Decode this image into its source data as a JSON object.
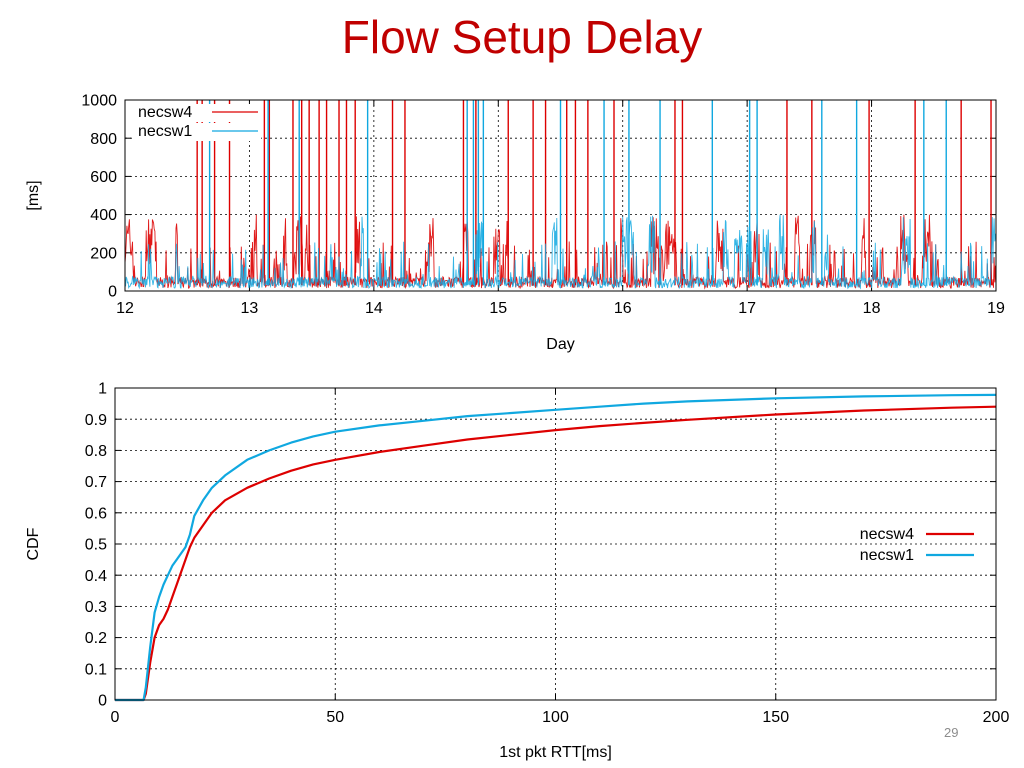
{
  "slide": {
    "title": "Flow Setup Delay",
    "page_number": "29"
  },
  "colors": {
    "necsw4": "#dd0000",
    "necsw1": "#10a8e0",
    "title": "#c00000"
  },
  "chart_data": [
    {
      "type": "line",
      "xlabel": "Day",
      "ylabel": "[ms]",
      "xlim": [
        12,
        19
      ],
      "ylim": [
        0,
        1000
      ],
      "xticks": [
        "12",
        "13",
        "14",
        "15",
        "16",
        "17",
        "18",
        "19"
      ],
      "yticks": [
        "0",
        "200",
        "400",
        "600",
        "800",
        "1000"
      ],
      "grid": true,
      "legend": "top-left",
      "series": [
        {
          "name": "necsw4",
          "baseline_ms": 50,
          "spikes": [
            {
              "x": 12.58,
              "y": 1000
            },
            {
              "x": 12.62,
              "y": 1000
            },
            {
              "x": 12.72,
              "y": 1000
            },
            {
              "x": 12.84,
              "y": 1000
            },
            {
              "x": 13.12,
              "y": 1000
            },
            {
              "x": 13.16,
              "y": 1000
            },
            {
              "x": 13.35,
              "y": 1000
            },
            {
              "x": 13.42,
              "y": 1000
            },
            {
              "x": 13.48,
              "y": 1000
            },
            {
              "x": 13.56,
              "y": 1000
            },
            {
              "x": 13.62,
              "y": 1000
            },
            {
              "x": 13.72,
              "y": 1000
            },
            {
              "x": 13.78,
              "y": 1000
            },
            {
              "x": 13.85,
              "y": 1000
            },
            {
              "x": 14.15,
              "y": 1000
            },
            {
              "x": 14.25,
              "y": 1000
            },
            {
              "x": 14.72,
              "y": 1000
            },
            {
              "x": 14.82,
              "y": 1000
            },
            {
              "x": 15.08,
              "y": 1000
            },
            {
              "x": 15.28,
              "y": 1000
            },
            {
              "x": 15.38,
              "y": 1000
            },
            {
              "x": 15.55,
              "y": 1000
            },
            {
              "x": 15.62,
              "y": 1000
            },
            {
              "x": 15.72,
              "y": 1000
            },
            {
              "x": 15.93,
              "y": 1000
            },
            {
              "x": 16.42,
              "y": 1000
            },
            {
              "x": 16.48,
              "y": 1000
            },
            {
              "x": 17.32,
              "y": 1000
            },
            {
              "x": 17.52,
              "y": 1000
            },
            {
              "x": 17.98,
              "y": 1000
            },
            {
              "x": 18.35,
              "y": 1000
            },
            {
              "x": 18.72,
              "y": 1000
            },
            {
              "x": 18.96,
              "y": 1000
            }
          ]
        },
        {
          "name": "necsw1",
          "baseline_ms": 50,
          "spikes": [
            {
              "x": 12.68,
              "y": 1000
            },
            {
              "x": 13.15,
              "y": 1000
            },
            {
              "x": 13.4,
              "y": 1000
            },
            {
              "x": 13.95,
              "y": 1000
            },
            {
              "x": 14.75,
              "y": 1000
            },
            {
              "x": 14.8,
              "y": 1000
            },
            {
              "x": 14.84,
              "y": 1000
            },
            {
              "x": 14.88,
              "y": 1000
            },
            {
              "x": 15.5,
              "y": 1000
            },
            {
              "x": 15.85,
              "y": 1000
            },
            {
              "x": 16.05,
              "y": 1000
            },
            {
              "x": 16.3,
              "y": 1000
            },
            {
              "x": 16.72,
              "y": 1000
            },
            {
              "x": 17.02,
              "y": 1000
            },
            {
              "x": 17.08,
              "y": 1000
            },
            {
              "x": 17.6,
              "y": 1000
            },
            {
              "x": 17.88,
              "y": 1000
            },
            {
              "x": 18.42,
              "y": 1000
            },
            {
              "x": 18.6,
              "y": 1000
            }
          ]
        }
      ]
    },
    {
      "type": "line",
      "xlabel": "1st pkt RTT[ms]",
      "ylabel": "CDF",
      "xlim": [
        0,
        200
      ],
      "ylim": [
        0,
        1
      ],
      "xticks": [
        "0",
        "50",
        "100",
        "150",
        "200"
      ],
      "yticks": [
        "0",
        "0.1",
        "0.2",
        "0.3",
        "0.4",
        "0.5",
        "0.6",
        "0.7",
        "0.8",
        "0.9",
        "1"
      ],
      "grid": true,
      "legend": "right",
      "series": [
        {
          "name": "necsw4",
          "x": [
            0,
            6.5,
            7,
            8,
            9,
            10,
            11,
            12,
            13,
            14,
            15,
            16,
            17,
            18,
            20,
            22,
            25,
            30,
            35,
            40,
            45,
            50,
            60,
            70,
            80,
            90,
            100,
            110,
            120,
            130,
            150,
            170,
            190,
            200
          ],
          "y": [
            0,
            0,
            0.02,
            0.12,
            0.2,
            0.24,
            0.26,
            0.29,
            0.33,
            0.37,
            0.41,
            0.45,
            0.49,
            0.52,
            0.56,
            0.6,
            0.64,
            0.68,
            0.71,
            0.735,
            0.755,
            0.77,
            0.795,
            0.815,
            0.835,
            0.85,
            0.865,
            0.878,
            0.888,
            0.898,
            0.915,
            0.928,
            0.937,
            0.94
          ]
        },
        {
          "name": "necsw1",
          "x": [
            0,
            6.5,
            7,
            8,
            9,
            10,
            11,
            12,
            13,
            14,
            15,
            16,
            17,
            18,
            20,
            22,
            25,
            30,
            35,
            40,
            45,
            50,
            60,
            70,
            80,
            90,
            100,
            110,
            120,
            130,
            150,
            170,
            190,
            200
          ],
          "y": [
            0,
            0,
            0.04,
            0.17,
            0.28,
            0.33,
            0.37,
            0.4,
            0.43,
            0.45,
            0.47,
            0.49,
            0.53,
            0.59,
            0.64,
            0.68,
            0.72,
            0.77,
            0.8,
            0.825,
            0.845,
            0.86,
            0.88,
            0.895,
            0.91,
            0.92,
            0.93,
            0.94,
            0.95,
            0.957,
            0.967,
            0.973,
            0.977,
            0.978
          ]
        }
      ]
    }
  ]
}
